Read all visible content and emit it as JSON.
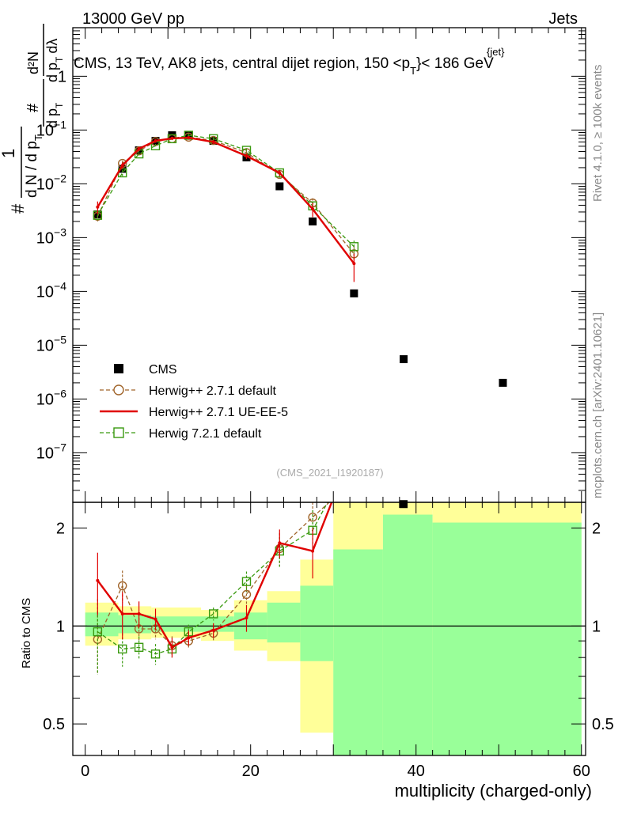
{
  "header": {
    "left": "13000 GeV pp",
    "right": "Jets"
  },
  "plot_title": "CMS, 13 TeV, AK8 jets, central dijet region, 150 <p",
  "plot_title_sup": "{jet}",
  "plot_title_sub": "T",
  "plot_title_end": "}< 186 GeV",
  "side_labels": {
    "rivet": "Rivet 4.1.0, ≥ 100k events",
    "mcplots": "mcplots.cern.ch [arXiv:2401.10621]"
  },
  "analysis_id": "(CMS_2021_I1920187)",
  "y_axis_main": {
    "frac_1": "1",
    "hash": "#",
    "frac_den": "d N / d p",
    "frac_den_sub": "T",
    "frac2_num": "#",
    "frac2_den": "d p",
    "frac2_den_sub": "T",
    "deriv_num": "d²N",
    "deriv_den": "d p",
    "deriv_den_sub": "T",
    "deriv_den_tail": "dλ"
  },
  "y_axis_ratio": "Ratio to CMS",
  "x_axis_label": "multiplicity (charged-only)",
  "colors": {
    "data": "#000000",
    "herwig271_default": "#a0642a",
    "herwig271_ueee5": "#e00000",
    "herwig721": "#3a9a10",
    "band_yellow": "#ffff99",
    "band_green": "#99ff99"
  },
  "legend": [
    {
      "key": "data",
      "label": "CMS"
    },
    {
      "key": "herwig271_default",
      "label": "Herwig++ 2.7.1 default"
    },
    {
      "key": "herwig271_ueee5",
      "label": "Herwig++ 2.7.1 UE-EE-5"
    },
    {
      "key": "herwig721",
      "label": "Herwig 7.2.1 default"
    }
  ],
  "chart_data": [
    {
      "type": "scatter",
      "panel": "main",
      "xlim": [
        -1.5,
        60.5
      ],
      "yscale": "log",
      "ylim": [
        1.2e-08,
        8
      ],
      "ytick_labels": [
        {
          "v": 1,
          "base": "1",
          "exp": ""
        },
        {
          "v": 0.1,
          "base": "10",
          "exp": "−1"
        },
        {
          "v": 0.01,
          "base": "10",
          "exp": "−2"
        },
        {
          "v": 0.001,
          "base": "10",
          "exp": "−3"
        },
        {
          "v": 0.0001,
          "base": "10",
          "exp": "−4"
        },
        {
          "v": 1e-05,
          "base": "10",
          "exp": "−5"
        },
        {
          "v": 1e-06,
          "base": "10",
          "exp": "−6"
        },
        {
          "v": 1e-07,
          "base": "10",
          "exp": "−7"
        }
      ],
      "series": [
        {
          "name": "CMS",
          "key": "data",
          "x": [
            1.5,
            4.5,
            6.5,
            8.5,
            10.5,
            12.5,
            15.5,
            19.5,
            23.5,
            27.5,
            32.5,
            38.5,
            50.5
          ],
          "y": [
            0.0027,
            0.019,
            0.042,
            0.063,
            0.08,
            0.08,
            0.063,
            0.031,
            0.009,
            0.002,
            9.2e-05,
            5.5e-06,
            2e-06
          ]
        },
        {
          "name": "Herwig++ 2.7.1 default",
          "key": "herwig271_default",
          "x": [
            1.5,
            4.5,
            6.5,
            8.5,
            10.5,
            12.5,
            15.5,
            19.5,
            23.5,
            27.5,
            32.5
          ],
          "y": [
            0.0025,
            0.024,
            0.041,
            0.061,
            0.069,
            0.074,
            0.064,
            0.038,
            0.015,
            0.0044,
            0.0005
          ],
          "err": [
            0.0005,
            0.003,
            0.004,
            0.005,
            0.005,
            0.005,
            0.005,
            0.004,
            0.002,
            0.001,
            0.0002
          ]
        },
        {
          "name": "Herwig++ 2.7.1 UE-EE-5",
          "key": "herwig271_ueee5",
          "x": [
            1.5,
            4.5,
            6.5,
            8.5,
            10.5,
            12.5,
            15.5,
            19.5,
            23.5,
            27.5,
            32.5
          ],
          "y": [
            0.0037,
            0.022,
            0.045,
            0.063,
            0.07,
            0.072,
            0.06,
            0.033,
            0.016,
            0.0034,
            0.00033
          ],
          "err": [
            0.001,
            0.003,
            0.004,
            0.005,
            0.005,
            0.005,
            0.005,
            0.004,
            0.002,
            0.001,
            0.00018
          ]
        },
        {
          "name": "Herwig 7.2.1 default",
          "key": "herwig721",
          "x": [
            1.5,
            4.5,
            6.5,
            8.5,
            10.5,
            12.5,
            15.5,
            19.5,
            23.5,
            27.5,
            32.5
          ],
          "y": [
            0.0026,
            0.016,
            0.036,
            0.051,
            0.069,
            0.08,
            0.069,
            0.042,
            0.016,
            0.0039,
            0.00068
          ],
          "err": [
            0.0005,
            0.002,
            0.003,
            0.004,
            0.005,
            0.005,
            0.005,
            0.004,
            0.002,
            0.0008,
            0.0002
          ]
        }
      ]
    },
    {
      "type": "scatter",
      "panel": "ratio",
      "xlim": [
        -1.5,
        60.5
      ],
      "yscale": "log",
      "ylim": [
        0.4,
        2.4
      ],
      "xtick_labels": [
        "0",
        "20",
        "40",
        "60"
      ],
      "ytick_labels": [
        {
          "v": 0.5,
          "label": "0.5"
        },
        {
          "v": 1,
          "label": "1"
        },
        {
          "v": 2,
          "label": "2"
        }
      ],
      "reference_line": 1,
      "bands": [
        {
          "x0": 0,
          "x1": 4,
          "yel": [
            0.87,
            1.18
          ],
          "grn": [
            0.93,
            1.1
          ]
        },
        {
          "x0": 4,
          "x1": 8,
          "yel": [
            0.91,
            1.15
          ],
          "grn": [
            0.95,
            1.08
          ]
        },
        {
          "x0": 8,
          "x1": 14,
          "yel": [
            0.92,
            1.14
          ],
          "grn": [
            0.96,
            1.07
          ]
        },
        {
          "x0": 14,
          "x1": 18,
          "yel": [
            0.9,
            1.12
          ],
          "grn": [
            0.96,
            1.07
          ]
        },
        {
          "x0": 18,
          "x1": 22,
          "yel": [
            0.84,
            1.2
          ],
          "grn": [
            0.91,
            1.1
          ]
        },
        {
          "x0": 22,
          "x1": 26,
          "yel": [
            0.78,
            1.28
          ],
          "grn": [
            0.89,
            1.18
          ]
        },
        {
          "x0": 26,
          "x1": 30,
          "yel": [
            0.47,
            1.6
          ],
          "grn": [
            0.78,
            1.33
          ]
        },
        {
          "x0": 30,
          "x1": 36,
          "yel": [
            0.4,
            2.4
          ],
          "grn": [
            0.4,
            1.72
          ]
        },
        {
          "x0": 36,
          "x1": 42,
          "yel": [
            0.4,
            2.4
          ],
          "grn": [
            0.4,
            2.2
          ]
        },
        {
          "x0": 42,
          "x1": 60,
          "yel": [
            0.4,
            2.4
          ],
          "grn": [
            0.4,
            2.08
          ]
        }
      ],
      "series": [
        {
          "name": "CMS",
          "key": "data",
          "x": [
            38.5
          ],
          "y": [
            2.37
          ]
        },
        {
          "name": "Herwig++ 2.7.1 default",
          "key": "herwig271_default",
          "x": [
            1.5,
            4.5,
            6.5,
            8.5,
            10.5,
            12.5,
            15.5,
            19.5,
            23.5,
            27.5,
            29.5
          ],
          "y": [
            0.91,
            1.33,
            0.98,
            0.98,
            0.87,
            0.9,
            0.95,
            1.25,
            1.73,
            2.16,
            2.4
          ],
          "err": [
            0.2,
            0.15,
            0.08,
            0.07,
            0.06,
            0.05,
            0.05,
            0.08,
            0.2,
            0.3,
            0
          ]
        },
        {
          "name": "Herwig++ 2.7.1 UE-EE-5",
          "key": "herwig271_ueee5",
          "x": [
            1.5,
            4.5,
            6.5,
            8.5,
            10.5,
            12.5,
            15.5,
            19.5,
            23.5,
            27.5,
            29.8
          ],
          "y": [
            1.38,
            1.09,
            1.09,
            1.05,
            0.86,
            0.92,
            0.97,
            1.06,
            1.8,
            1.7,
            2.4
          ],
          "err": [
            0.3,
            0.18,
            0.1,
            0.08,
            0.06,
            0.05,
            0.05,
            0.1,
            0.18,
            0.3,
            0
          ]
        },
        {
          "name": "Herwig 7.2.1 default",
          "key": "herwig721",
          "x": [
            1.5,
            4.5,
            6.5,
            8.5,
            10.5,
            12.5,
            15.5,
            19.5,
            23.5,
            27.5,
            29.3
          ],
          "y": [
            0.96,
            0.85,
            0.86,
            0.82,
            0.85,
            0.96,
            1.09,
            1.37,
            1.7,
            1.97,
            2.4
          ],
          "err": [
            0.25,
            0.1,
            0.07,
            0.06,
            0.05,
            0.05,
            0.05,
            0.1,
            0.18,
            0.3,
            0
          ]
        }
      ]
    }
  ]
}
